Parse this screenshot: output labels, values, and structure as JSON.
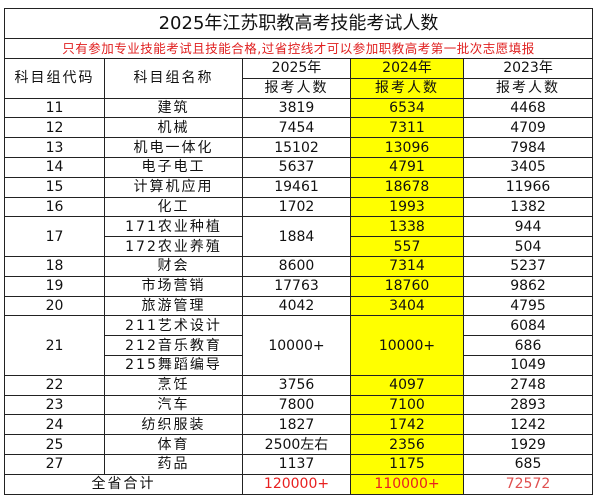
{
  "title": "2025年江苏职教高考技能考试人数",
  "note": "只有参加专业技能考试且技能合格,过省控线才可以参加职教高考第一批次志愿填报",
  "headers": {
    "code": "科目组代码",
    "name": "科目组名称",
    "y2025": "2025年",
    "y2024": "2024年",
    "y2023": "2023年",
    "sub": "报考人数"
  },
  "colors": {
    "highlight": "#ffff00",
    "total_text": "#e82020"
  },
  "rows": [
    {
      "code": "11",
      "name": "建筑",
      "y2025": "3819",
      "y2024": "6534",
      "y2023": "4468"
    },
    {
      "code": "12",
      "name": "机械",
      "y2025": "7454",
      "y2024": "7311",
      "y2023": "4709"
    },
    {
      "code": "13",
      "name": "机电一体化",
      "y2025": "15102",
      "y2024": "13096",
      "y2023": "7984"
    },
    {
      "code": "14",
      "name": "电子电工",
      "y2025": "5637",
      "y2024": "4791",
      "y2023": "3405"
    },
    {
      "code": "15",
      "name": "计算机应用",
      "y2025": "19461",
      "y2024": "18678",
      "y2023": "11966"
    },
    {
      "code": "16",
      "name": "化工",
      "y2025": "1702",
      "y2024": "1993",
      "y2023": "1382"
    },
    {
      "code": "17",
      "y2025": "1884",
      "subs": [
        {
          "name": "171农业种植",
          "y2024": "1338",
          "y2023": "944"
        },
        {
          "name": "172农业养殖",
          "y2024": "557",
          "y2023": "504"
        }
      ]
    },
    {
      "code": "18",
      "name": "财会",
      "y2025": "8600",
      "y2024": "7314",
      "y2023": "5237"
    },
    {
      "code": "19",
      "name": "市场营销",
      "y2025": "17763",
      "y2024": "18760",
      "y2023": "9862"
    },
    {
      "code": "20",
      "name": "旅游管理",
      "y2025": "4042",
      "y2024": "3404",
      "y2023": "4795"
    },
    {
      "code": "21",
      "y2025": "10000+",
      "y2024": "10000+",
      "subs": [
        {
          "name": "211艺术设计",
          "y2023": "6084"
        },
        {
          "name": "212音乐教育",
          "y2023": "686"
        },
        {
          "name": "215舞蹈编导",
          "y2023": "1049"
        }
      ]
    },
    {
      "code": "22",
      "name": "烹饪",
      "y2025": "3756",
      "y2024": "4097",
      "y2023": "2748"
    },
    {
      "code": "23",
      "name": "汽车",
      "y2025": "7800",
      "y2024": "7100",
      "y2023": "2893"
    },
    {
      "code": "24",
      "name": "纺织服装",
      "y2025": "1827",
      "y2024": "1742",
      "y2023": "1242"
    },
    {
      "code": "25",
      "name": "体育",
      "y2025": "2500左右",
      "y2024": "2356",
      "y2023": "1929"
    },
    {
      "code": "27",
      "name": "药品",
      "y2025": "1137",
      "y2024": "1175",
      "y2023": "685"
    }
  ],
  "total": {
    "label": "全省合计",
    "y2025": "120000+",
    "y2024": "110000+",
    "y2023": "72572"
  }
}
